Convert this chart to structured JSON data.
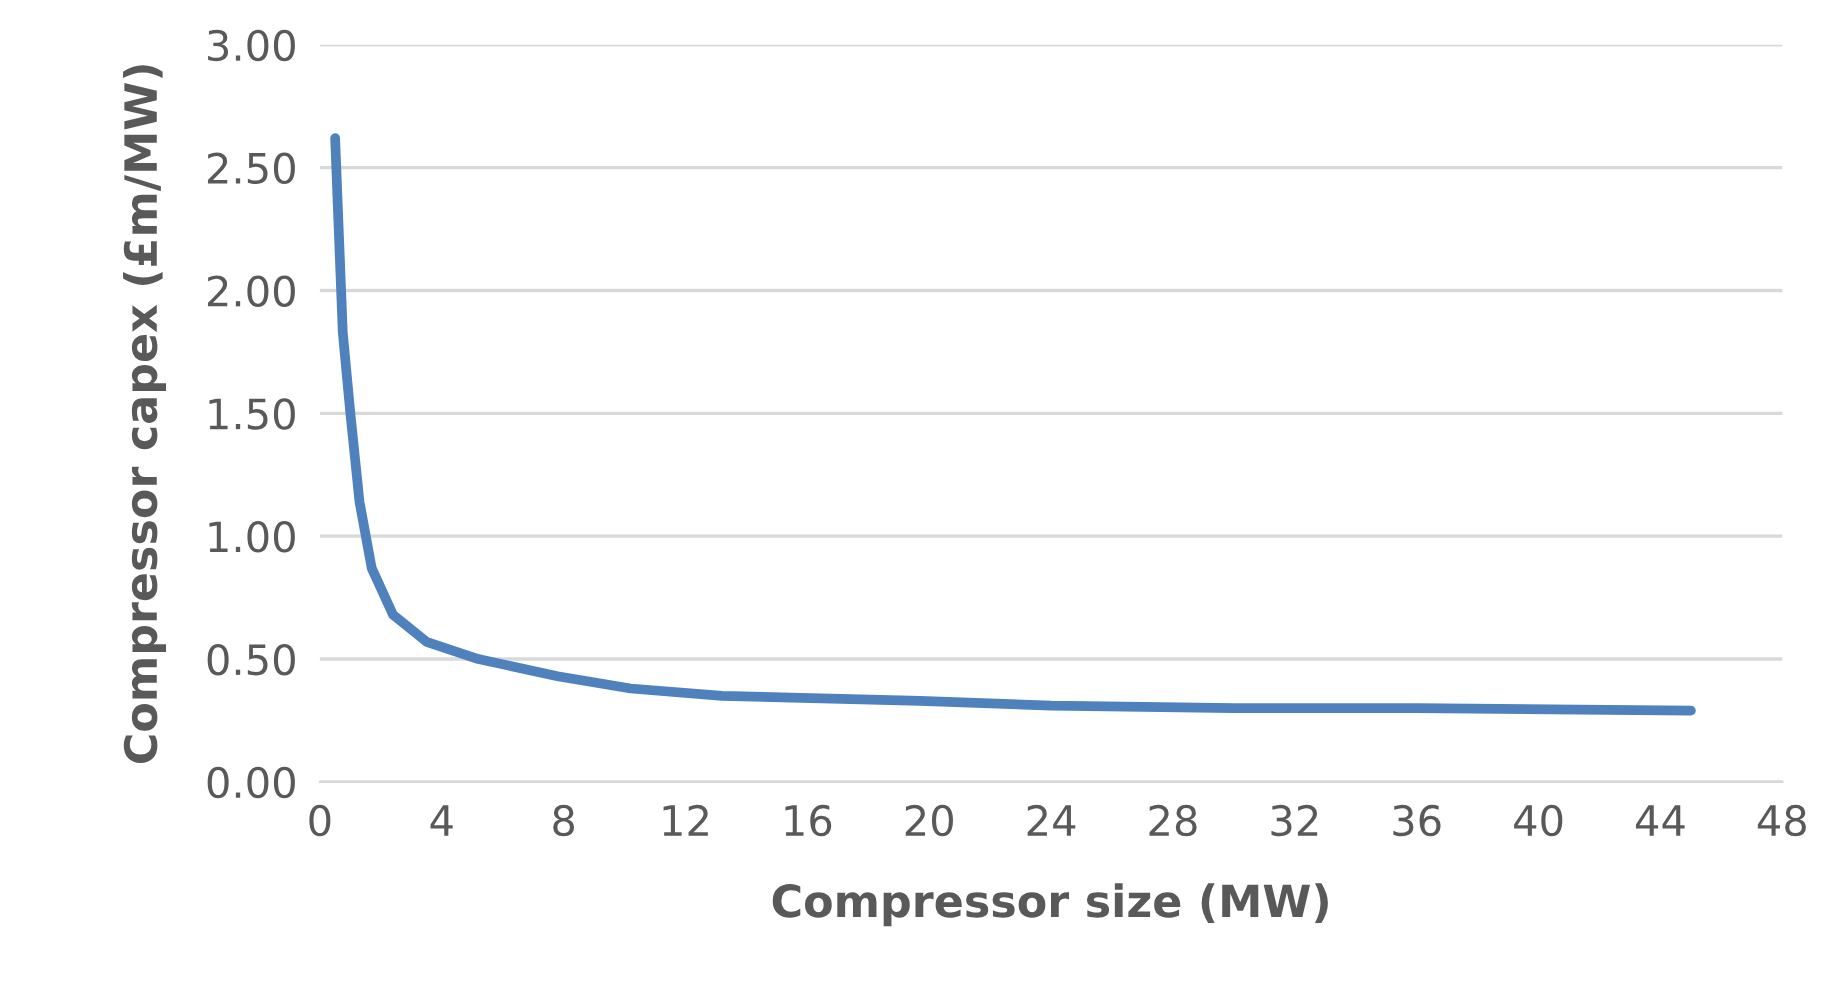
{
  "chart_data": {
    "type": "line",
    "xlabel": "Compressor size (MW)",
    "ylabel": "Compressor capex (£m/MW)",
    "x": [
      0.5,
      0.75,
      1.0,
      1.3,
      1.7,
      2.4,
      3.5,
      5.2,
      7.8,
      10.2,
      13.2,
      19.7,
      24,
      30,
      36,
      45
    ],
    "series": [
      {
        "color": "#4f81bd",
        "values": [
          2.62,
          1.83,
          1.5,
          1.14,
          0.87,
          0.68,
          0.57,
          0.5,
          0.43,
          0.38,
          0.35,
          0.33,
          0.31,
          0.3,
          0.3,
          0.29
        ]
      }
    ],
    "xlim": [
      0,
      48
    ],
    "xticks": [
      0,
      4,
      8,
      12,
      16,
      20,
      24,
      28,
      32,
      36,
      40,
      44,
      48
    ],
    "ylim": [
      0,
      3
    ],
    "yticks": [
      {
        "value": 0,
        "label": "0.00"
      },
      {
        "value": 0.5,
        "label": "0.50"
      },
      {
        "value": 1,
        "label": "1.00"
      },
      {
        "value": 1.5,
        "label": "1.50"
      },
      {
        "value": 2,
        "label": "2.00"
      },
      {
        "value": 2.5,
        "label": "2.50"
      },
      {
        "value": 3,
        "label": "3.00"
      }
    ],
    "grid": "y",
    "marker": "none",
    "line_style": "solid"
  }
}
